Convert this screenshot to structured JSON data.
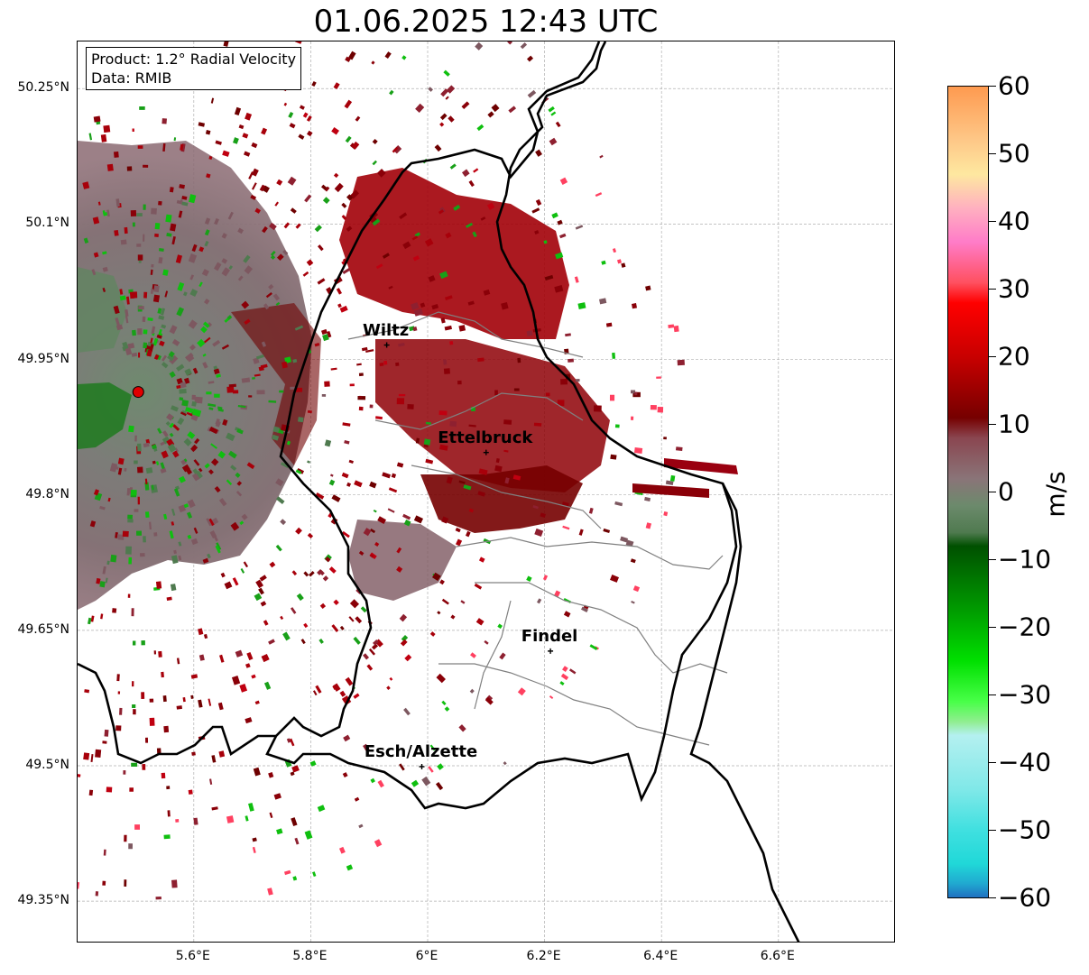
{
  "title": "01.06.2025 12:43 UTC",
  "info": {
    "product": "Product: 1.2° Radial Velocity",
    "source": "Data: RMIB"
  },
  "map": {
    "lon_range": [
      5.4,
      6.8
    ],
    "lat_range": [
      49.3,
      50.3
    ],
    "lat_ticks": [
      {
        "value": 50.25,
        "label": "50.25°N"
      },
      {
        "value": 50.1,
        "label": "50.1°N"
      },
      {
        "value": 49.95,
        "label": "49.95°N"
      },
      {
        "value": 49.8,
        "label": "49.8°N"
      },
      {
        "value": 49.65,
        "label": "49.65°N"
      },
      {
        "value": 49.5,
        "label": "49.5°N"
      },
      {
        "value": 49.35,
        "label": "49.35°N"
      }
    ],
    "lon_ticks": [
      {
        "value": 5.6,
        "label": "5.6°E"
      },
      {
        "value": 5.8,
        "label": "5.8°E"
      },
      {
        "value": 6.0,
        "label": "6°E"
      },
      {
        "value": 6.2,
        "label": "6.2°E"
      },
      {
        "value": 6.4,
        "label": "6.4°E"
      },
      {
        "value": 6.6,
        "label": "6.6°E"
      }
    ],
    "radar_site": {
      "lon": 5.505,
      "lat": 49.914
    },
    "cities": [
      {
        "name": "Wiltz",
        "lon": 5.93,
        "lat": 49.966
      },
      {
        "name": "Ettelbruck",
        "lon": 6.1,
        "lat": 49.847
      },
      {
        "name": "Findel",
        "lon": 6.21,
        "lat": 49.627
      },
      {
        "name": "Esch/Alzette",
        "lon": 5.99,
        "lat": 49.499
      }
    ],
    "colors": {
      "outbound_dark": "#7a0000",
      "outbound": "#a00008",
      "near_zero": "#857276",
      "inbound": "#1a8a1a",
      "border": "#000000",
      "canton_lines": "#808080",
      "radar_marker": "#e00000"
    }
  },
  "colorbar": {
    "unit": "m/s",
    "min": -60,
    "max": 60,
    "ticks": [
      {
        "value": 60,
        "label": "60"
      },
      {
        "value": 50,
        "label": "50"
      },
      {
        "value": 40,
        "label": "40"
      },
      {
        "value": 30,
        "label": "30"
      },
      {
        "value": 20,
        "label": "20"
      },
      {
        "value": 10,
        "label": "10"
      },
      {
        "value": 0,
        "label": "0"
      },
      {
        "value": -10,
        "label": "−10"
      },
      {
        "value": -20,
        "label": "−20"
      },
      {
        "value": -30,
        "label": "−30"
      },
      {
        "value": -40,
        "label": "−40"
      },
      {
        "value": -50,
        "label": "−50"
      },
      {
        "value": -60,
        "label": "−60"
      }
    ],
    "stops": [
      {
        "value": 60,
        "color": "#fe9a50"
      },
      {
        "value": 52,
        "color": "#fec888"
      },
      {
        "value": 47,
        "color": "#fee8a0"
      },
      {
        "value": 42,
        "color": "#ffb0c0"
      },
      {
        "value": 37,
        "color": "#ff7cc8"
      },
      {
        "value": 31,
        "color": "#ff5060"
      },
      {
        "value": 28,
        "color": "#ff0000"
      },
      {
        "value": 20,
        "color": "#c80000"
      },
      {
        "value": 11,
        "color": "#760000"
      },
      {
        "value": 8,
        "color": "#8a4650"
      },
      {
        "value": 2,
        "color": "#8a7478"
      },
      {
        "value": -2,
        "color": "#6c8a6c"
      },
      {
        "value": -6,
        "color": "#4f7a4f"
      },
      {
        "value": -8,
        "color": "#005000"
      },
      {
        "value": -18,
        "color": "#00a000"
      },
      {
        "value": -25,
        "color": "#00e000"
      },
      {
        "value": -31,
        "color": "#48ff48"
      },
      {
        "value": -34,
        "color": "#90ee90"
      },
      {
        "value": -36,
        "color": "#b4f0f0"
      },
      {
        "value": -44,
        "color": "#80e8e8"
      },
      {
        "value": -50,
        "color": "#40e0e0"
      },
      {
        "value": -55,
        "color": "#20d8d8"
      },
      {
        "value": -58,
        "color": "#20a8d0"
      },
      {
        "value": -60,
        "color": "#2070c0"
      }
    ]
  }
}
